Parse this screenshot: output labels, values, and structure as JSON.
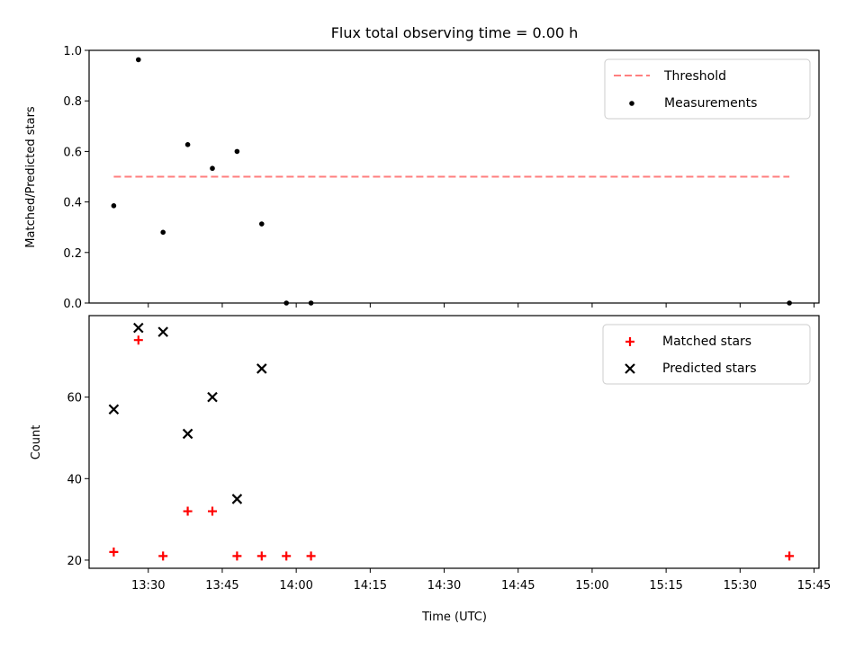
{
  "chart_data": {
    "type": "scatter",
    "title": "Flux total observing time = 0.00 h",
    "xlabel": "Time (UTC)",
    "x_ticks": [
      "13:30",
      "13:45",
      "14:00",
      "14:15",
      "14:30",
      "14:45",
      "15:00",
      "15:15",
      "15:30",
      "15:45"
    ],
    "colors": {
      "threshold": "#ff7f7f",
      "measurements": "#000000",
      "matched": "#ff0000",
      "predicted": "#000000"
    },
    "panels": [
      {
        "ylabel": "Matched/Predicted stars",
        "ylim": [
          0.0,
          1.0
        ],
        "y_ticks": [
          "0.0",
          "0.2",
          "0.4",
          "0.6",
          "0.8",
          "1.0"
        ],
        "legend_position": "top-right",
        "series": [
          {
            "name": "Threshold",
            "type": "line",
            "style": "dashed",
            "x": [
              "13:23",
              "15:40"
            ],
            "values": [
              0.5,
              0.5
            ]
          },
          {
            "name": "Measurements",
            "type": "scatter",
            "marker": "dot",
            "x": [
              "13:23",
              "13:28",
              "13:33",
              "13:38",
              "13:43",
              "13:48",
              "13:53",
              "13:58",
              "14:03",
              "15:40"
            ],
            "values": [
              0.385,
              0.963,
              0.28,
              0.627,
              0.533,
              0.6,
              0.313,
              0.0,
              0.0,
              0.0
            ]
          }
        ]
      },
      {
        "ylabel": "Count",
        "ylim": [
          18,
          80
        ],
        "y_ticks": [
          "20",
          "40",
          "60"
        ],
        "legend_position": "top-right",
        "series": [
          {
            "name": "Matched stars",
            "type": "scatter",
            "marker": "plus",
            "x": [
              "13:23",
              "13:28",
              "13:33",
              "13:38",
              "13:43",
              "13:48",
              "13:53",
              "13:58",
              "14:03",
              "15:40"
            ],
            "values": [
              22,
              74,
              21,
              32,
              32,
              21,
              21,
              21,
              21,
              21
            ]
          },
          {
            "name": "Predicted stars",
            "type": "scatter",
            "marker": "x",
            "x": [
              "13:23",
              "13:28",
              "13:33",
              "13:38",
              "13:43",
              "13:48",
              "13:53"
            ],
            "values": [
              57,
              77,
              76,
              51,
              60,
              35,
              67
            ]
          }
        ]
      }
    ]
  }
}
